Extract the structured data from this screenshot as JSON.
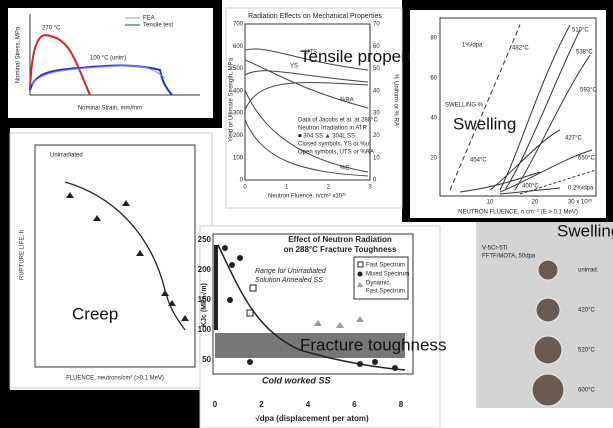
{
  "panels": {
    "tensile_curve": {
      "labels": [
        "FEA",
        "Tensile test",
        "270 °C",
        "100 °C (unirr)"
      ],
      "x_axis": "Nominal Strain, mm/mm",
      "y_axis": "Nominal Stress, MPa"
    },
    "radiation_effects": {
      "title": "Radiation Effects on Mechanical Properties",
      "overlay": "Tensile properties",
      "y_left_ticks": [
        0,
        100,
        200,
        300,
        400,
        500,
        600,
        700
      ],
      "y_right_ticks": [
        0,
        10,
        20,
        30,
        40,
        50,
        60,
        70
      ],
      "x_ticks": [
        0,
        1,
        2,
        3
      ],
      "x_axis": "Neutron Fluence, n/cm² x10²¹",
      "y_left_axis": "Yield or Ultimate Strength, MPa",
      "y_right_axis": "% Uniform or % RA",
      "curve_labels": [
        "UTS",
        "YS",
        "%RA",
        "%E"
      ],
      "legend": [
        "Data of Jacobs et al. at 288°C",
        "Neutron Irradiation in ATR",
        "■ 304 SS   ▲ 304L SS",
        "Closed symbols, YS or %u",
        "Open symbols, UTS or %RA"
      ]
    },
    "swelling_plot": {
      "overlay": "Swelling",
      "y_axis": "SWELLING %",
      "y_ticks": [
        80,
        60,
        40,
        20
      ],
      "x_ticks": [
        10,
        20,
        "30 x 10²⁰"
      ],
      "x_axis": "NEUTRON FLUENCE, n cm⁻² (E > 0.1 MeV)",
      "rate_labels": [
        "1%/dpa",
        "0.2%/dpa"
      ],
      "temperatures": [
        "510°C",
        "538°C",
        "482°C",
        "593°C",
        "427°C",
        "650°C",
        "454°C",
        "400°C"
      ]
    },
    "creep": {
      "overlay": "Creep",
      "note": "Unirradiated",
      "y_axis": "RUPTURE LIFE, h",
      "x_axis": "FLUENCE, neutrons/cm² (>0.1 MeV)"
    },
    "fracture_toughness": {
      "title": [
        "Effect of Neutron Radiation",
        "on 288°C Fracture Toughness"
      ],
      "legend": [
        "Fast Spectrum",
        "Mixed Spectrum",
        "Dynamic,",
        "Fast Spectrum"
      ],
      "range_note": [
        "Range for Unirradiated",
        "Solution Annealed SS"
      ],
      "band_label": "Fracture toughness",
      "cold_worked": "Cold worked SS",
      "y_axis": "KJc (MPa√m)",
      "y_ticks": [
        250,
        200,
        150,
        100,
        50
      ],
      "x_ticks": [
        0,
        2,
        4,
        6,
        8
      ],
      "x_axis": "√dpa (displacement per atom)"
    },
    "swelling_photo": {
      "overlay": "Swelling",
      "caption": [
        "V-5Cr-5Ti",
        "FFTF/MOTA, 50dpa"
      ],
      "specimens": [
        "unirrad.",
        "420°C",
        "520°C",
        "600°C"
      ]
    }
  }
}
